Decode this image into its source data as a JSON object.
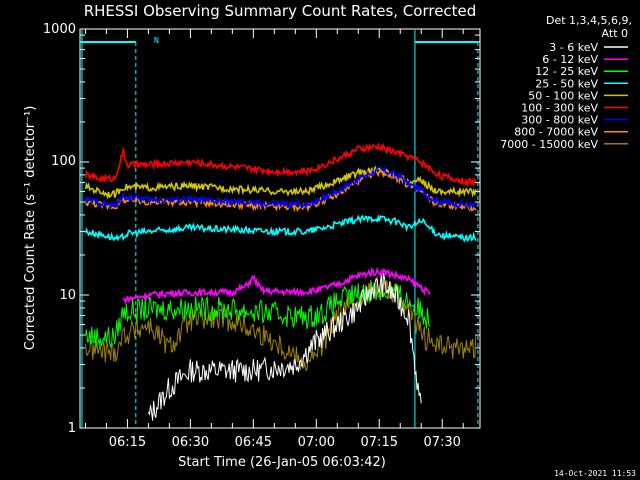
{
  "chart_data": {
    "type": "line",
    "title": "RHESSI Observing Summary Count Rates, Corrected",
    "xlabel": "Start Time (26-Jan-05 06:03:42)",
    "ylabel": "Corrected Count Rate (s⁻¹ detector⁻¹)",
    "y_scale": "log",
    "ylim": [
      1,
      1000
    ],
    "xlim": [
      "06:03:42",
      "07:39:00"
    ],
    "x_ticks": [
      "06:15",
      "06:30",
      "06:45",
      "07:00",
      "07:15",
      "07:30"
    ],
    "y_ticks": [
      "1",
      "10",
      "100",
      "1000"
    ],
    "detector_info": [
      "Det 1,3,4,5,6,9,",
      "Att 0"
    ],
    "flag_label": "N",
    "timestamp": "14-Oct-2021 11:53",
    "legend_position": "top-right",
    "series": [
      {
        "name": "3 - 6 keV",
        "color": "#ffffff",
        "x": [
          "06:20",
          "06:25",
          "06:30",
          "06:45",
          "06:55",
          "07:00",
          "07:05",
          "07:10",
          "07:13",
          "07:16",
          "07:19",
          "07:22",
          "07:25"
        ],
        "values": [
          1.2,
          2.0,
          2.7,
          2.7,
          3.0,
          4.5,
          6.0,
          8.0,
          11.0,
          12.0,
          9.5,
          7.0,
          1.3
        ]
      },
      {
        "name": "6 - 12 keV",
        "color": "#ff00ff",
        "x": [
          "06:14",
          "06:17",
          "06:20",
          "06:25",
          "06:30",
          "06:35",
          "06:40",
          "06:43",
          "06:45",
          "06:47",
          "06:50",
          "06:55",
          "07:00",
          "07:05",
          "07:10",
          "07:13",
          "07:16",
          "07:19",
          "07:22",
          "07:25",
          "07:27"
        ],
        "values": [
          9.2,
          9.6,
          10.0,
          10.3,
          10.4,
          10.5,
          10.5,
          11.5,
          13.5,
          10.8,
          10.6,
          10.5,
          10.8,
          12.0,
          14.0,
          14.8,
          15.0,
          14.0,
          13.0,
          11.5,
          10.0
        ]
      },
      {
        "name": "12 - 25 keV",
        "color": "#00ff00",
        "x": [
          "06:05",
          "06:08",
          "06:12",
          "06:14",
          "06:20",
          "06:30",
          "06:40",
          "06:50",
          "06:58",
          "07:02",
          "07:05",
          "07:10",
          "07:13",
          "07:16",
          "07:19",
          "07:22",
          "07:25",
          "07:27"
        ],
        "values": [
          5.0,
          4.8,
          4.8,
          7.5,
          7.8,
          8.0,
          7.8,
          7.2,
          6.8,
          7.5,
          9.0,
          10.2,
          10.8,
          10.8,
          10.2,
          9.0,
          7.5,
          6.5
        ]
      },
      {
        "name": "25 - 50 keV",
        "color": "#00ffff",
        "x": [
          "06:05",
          "06:10",
          "06:13",
          "06:15",
          "06:20",
          "06:30",
          "06:40",
          "06:50",
          "06:58",
          "07:05",
          "07:10",
          "07:15",
          "07:20",
          "07:22",
          "07:25",
          "07:28",
          "07:30",
          "07:35",
          "07:38"
        ],
        "values": [
          30,
          28,
          26,
          29,
          30,
          32,
          31,
          30,
          30,
          34,
          37,
          38,
          35,
          32,
          36,
          30,
          28,
          27,
          27
        ]
      },
      {
        "name": "50 - 100 keV",
        "color": "#d2c800",
        "x": [
          "06:05",
          "06:10",
          "06:12",
          "06:14",
          "06:20",
          "06:30",
          "06:40",
          "06:50",
          "06:58",
          "07:05",
          "07:10",
          "07:15",
          "07:20",
          "07:22",
          "07:25",
          "07:28",
          "07:30",
          "07:35",
          "07:38"
        ],
        "values": [
          65,
          58,
          57,
          65,
          64,
          66,
          63,
          60,
          60,
          72,
          83,
          88,
          78,
          70,
          72,
          62,
          60,
          60,
          60
        ]
      },
      {
        "name": "100 - 300 keV",
        "color": "#ff0000",
        "x": [
          "06:05",
          "06:08",
          "06:12",
          "06:14",
          "06:15",
          "06:20",
          "06:30",
          "06:40",
          "06:50",
          "06:58",
          "07:05",
          "07:10",
          "07:15",
          "07:20",
          "07:22",
          "07:25",
          "07:28",
          "07:30",
          "07:35",
          "07:38"
        ],
        "values": [
          80,
          75,
          75,
          120,
          95,
          95,
          100,
          92,
          85,
          85,
          105,
          125,
          130,
          115,
          110,
          100,
          85,
          78,
          72,
          70
        ]
      },
      {
        "name": "300 - 800 keV",
        "color": "#0000ff",
        "x": [
          "06:05",
          "06:10",
          "06:12",
          "06:14",
          "06:20",
          "06:30",
          "06:40",
          "06:50",
          "06:58",
          "07:05",
          "07:10",
          "07:15",
          "07:20",
          "07:22",
          "07:25",
          "07:28",
          "07:30",
          "07:35",
          "07:38"
        ],
        "values": [
          52,
          48,
          47,
          55,
          52,
          52,
          50,
          48,
          48,
          60,
          75,
          88,
          78,
          68,
          62,
          52,
          50,
          48,
          47
        ]
      },
      {
        "name": "800 - 7000 keV",
        "color": "#ff8c00",
        "x": [
          "06:05",
          "06:10",
          "06:12",
          "06:14",
          "06:20",
          "06:30",
          "06:40",
          "06:50",
          "06:58",
          "07:05",
          "07:10",
          "07:15",
          "07:20",
          "07:22",
          "07:25",
          "07:28",
          "07:30",
          "07:35",
          "07:38"
        ],
        "values": [
          50,
          47,
          46,
          52,
          50,
          50,
          48,
          46,
          46,
          57,
          72,
          85,
          75,
          66,
          60,
          50,
          48,
          46,
          45
        ]
      },
      {
        "name": "7000 - 15000 keV",
        "color": "#9c8200",
        "x": [
          "06:05",
          "06:08",
          "06:12",
          "06:14",
          "06:20",
          "06:25",
          "06:30",
          "06:40",
          "06:50",
          "06:58",
          "07:02",
          "07:05",
          "07:10",
          "07:13",
          "07:16",
          "07:19",
          "07:22",
          "07:25",
          "07:30",
          "07:38"
        ],
        "values": [
          4.0,
          3.8,
          3.7,
          5.0,
          6.0,
          4.0,
          6.5,
          6.5,
          4.5,
          3.0,
          4.5,
          7.0,
          9.5,
          11.0,
          11.5,
          10.5,
          8.0,
          5.0,
          4.0,
          4.0
        ]
      }
    ]
  }
}
